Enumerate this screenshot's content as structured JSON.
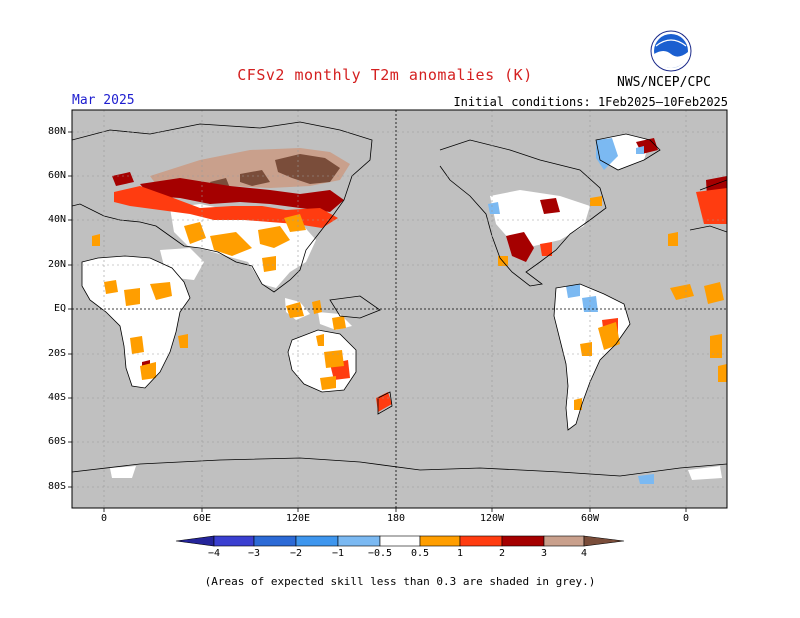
{
  "title": "CFSv2 monthly T2m anomalies (K)",
  "month": "Mar 2025",
  "initial_conditions": "Initial conditions: 1Feb2025–10Feb2025",
  "agency": "NWS/NCEP/CPC",
  "logo_icon": "noaa-logo-icon",
  "footnote": "(Areas of expected skill less than 0.3 are shaded in grey.)",
  "lat_labels": [
    "80N",
    "60N",
    "40N",
    "20N",
    "EQ",
    "20S",
    "40S",
    "60S",
    "80S"
  ],
  "lon_labels": [
    "0",
    "60E",
    "120E",
    "180",
    "120W",
    "60W",
    "0"
  ],
  "colorbar": {
    "labels": [
      "−4",
      "−3",
      "−2",
      "−1",
      "−0.5",
      "0.5",
      "1",
      "2",
      "3",
      "4"
    ],
    "colors": {
      "lt_m4": "#24249a",
      "m4_m3": "#3a3fd0",
      "m3_m2": "#2c6ad6",
      "m2_m1": "#3e96ee",
      "m1_m05": "#7bb9f2",
      "neutral": "#ffffff",
      "p05_p1": "#ff9e00",
      "p1_p2": "#ff3c10",
      "p2_p3": "#a50000",
      "p3_p4": "#c9a08c",
      "gt_p4": "#7a4d3a"
    }
  },
  "colors": {
    "ocean_grey": "#c0c0c0",
    "title_red": "#d42020",
    "month_blue": "#1d1dcf"
  }
}
